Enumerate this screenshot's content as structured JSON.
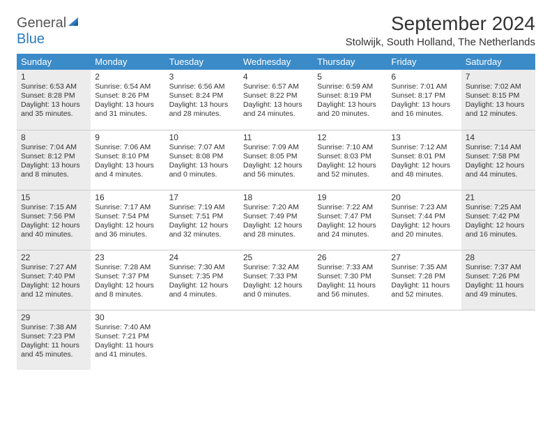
{
  "brand": {
    "part1": "General",
    "part2": "Blue"
  },
  "title": "September 2024",
  "location": "Stolwijk, South Holland, The Netherlands",
  "colors": {
    "header_bg": "#3b8bc9",
    "header_text": "#ffffff",
    "shaded_bg": "#ececec",
    "border": "#c9c9c9",
    "text": "#333333",
    "brand_gray": "#555555",
    "brand_blue": "#2b7bbf"
  },
  "weekdays": [
    "Sunday",
    "Monday",
    "Tuesday",
    "Wednesday",
    "Thursday",
    "Friday",
    "Saturday"
  ],
  "weeks": [
    [
      {
        "day": "1",
        "sunrise": "Sunrise: 6:53 AM",
        "sunset": "Sunset: 8:28 PM",
        "daylight": "Daylight: 13 hours and 35 minutes.",
        "shaded": true
      },
      {
        "day": "2",
        "sunrise": "Sunrise: 6:54 AM",
        "sunset": "Sunset: 8:26 PM",
        "daylight": "Daylight: 13 hours and 31 minutes.",
        "shaded": false
      },
      {
        "day": "3",
        "sunrise": "Sunrise: 6:56 AM",
        "sunset": "Sunset: 8:24 PM",
        "daylight": "Daylight: 13 hours and 28 minutes.",
        "shaded": false
      },
      {
        "day": "4",
        "sunrise": "Sunrise: 6:57 AM",
        "sunset": "Sunset: 8:22 PM",
        "daylight": "Daylight: 13 hours and 24 minutes.",
        "shaded": false
      },
      {
        "day": "5",
        "sunrise": "Sunrise: 6:59 AM",
        "sunset": "Sunset: 8:19 PM",
        "daylight": "Daylight: 13 hours and 20 minutes.",
        "shaded": false
      },
      {
        "day": "6",
        "sunrise": "Sunrise: 7:01 AM",
        "sunset": "Sunset: 8:17 PM",
        "daylight": "Daylight: 13 hours and 16 minutes.",
        "shaded": false
      },
      {
        "day": "7",
        "sunrise": "Sunrise: 7:02 AM",
        "sunset": "Sunset: 8:15 PM",
        "daylight": "Daylight: 13 hours and 12 minutes.",
        "shaded": true
      }
    ],
    [
      {
        "day": "8",
        "sunrise": "Sunrise: 7:04 AM",
        "sunset": "Sunset: 8:12 PM",
        "daylight": "Daylight: 13 hours and 8 minutes.",
        "shaded": true
      },
      {
        "day": "9",
        "sunrise": "Sunrise: 7:06 AM",
        "sunset": "Sunset: 8:10 PM",
        "daylight": "Daylight: 13 hours and 4 minutes.",
        "shaded": false
      },
      {
        "day": "10",
        "sunrise": "Sunrise: 7:07 AM",
        "sunset": "Sunset: 8:08 PM",
        "daylight": "Daylight: 13 hours and 0 minutes.",
        "shaded": false
      },
      {
        "day": "11",
        "sunrise": "Sunrise: 7:09 AM",
        "sunset": "Sunset: 8:05 PM",
        "daylight": "Daylight: 12 hours and 56 minutes.",
        "shaded": false
      },
      {
        "day": "12",
        "sunrise": "Sunrise: 7:10 AM",
        "sunset": "Sunset: 8:03 PM",
        "daylight": "Daylight: 12 hours and 52 minutes.",
        "shaded": false
      },
      {
        "day": "13",
        "sunrise": "Sunrise: 7:12 AM",
        "sunset": "Sunset: 8:01 PM",
        "daylight": "Daylight: 12 hours and 48 minutes.",
        "shaded": false
      },
      {
        "day": "14",
        "sunrise": "Sunrise: 7:14 AM",
        "sunset": "Sunset: 7:58 PM",
        "daylight": "Daylight: 12 hours and 44 minutes.",
        "shaded": true
      }
    ],
    [
      {
        "day": "15",
        "sunrise": "Sunrise: 7:15 AM",
        "sunset": "Sunset: 7:56 PM",
        "daylight": "Daylight: 12 hours and 40 minutes.",
        "shaded": true
      },
      {
        "day": "16",
        "sunrise": "Sunrise: 7:17 AM",
        "sunset": "Sunset: 7:54 PM",
        "daylight": "Daylight: 12 hours and 36 minutes.",
        "shaded": false
      },
      {
        "day": "17",
        "sunrise": "Sunrise: 7:19 AM",
        "sunset": "Sunset: 7:51 PM",
        "daylight": "Daylight: 12 hours and 32 minutes.",
        "shaded": false
      },
      {
        "day": "18",
        "sunrise": "Sunrise: 7:20 AM",
        "sunset": "Sunset: 7:49 PM",
        "daylight": "Daylight: 12 hours and 28 minutes.",
        "shaded": false
      },
      {
        "day": "19",
        "sunrise": "Sunrise: 7:22 AM",
        "sunset": "Sunset: 7:47 PM",
        "daylight": "Daylight: 12 hours and 24 minutes.",
        "shaded": false
      },
      {
        "day": "20",
        "sunrise": "Sunrise: 7:23 AM",
        "sunset": "Sunset: 7:44 PM",
        "daylight": "Daylight: 12 hours and 20 minutes.",
        "shaded": false
      },
      {
        "day": "21",
        "sunrise": "Sunrise: 7:25 AM",
        "sunset": "Sunset: 7:42 PM",
        "daylight": "Daylight: 12 hours and 16 minutes.",
        "shaded": true
      }
    ],
    [
      {
        "day": "22",
        "sunrise": "Sunrise: 7:27 AM",
        "sunset": "Sunset: 7:40 PM",
        "daylight": "Daylight: 12 hours and 12 minutes.",
        "shaded": true
      },
      {
        "day": "23",
        "sunrise": "Sunrise: 7:28 AM",
        "sunset": "Sunset: 7:37 PM",
        "daylight": "Daylight: 12 hours and 8 minutes.",
        "shaded": false
      },
      {
        "day": "24",
        "sunrise": "Sunrise: 7:30 AM",
        "sunset": "Sunset: 7:35 PM",
        "daylight": "Daylight: 12 hours and 4 minutes.",
        "shaded": false
      },
      {
        "day": "25",
        "sunrise": "Sunrise: 7:32 AM",
        "sunset": "Sunset: 7:33 PM",
        "daylight": "Daylight: 12 hours and 0 minutes.",
        "shaded": false
      },
      {
        "day": "26",
        "sunrise": "Sunrise: 7:33 AM",
        "sunset": "Sunset: 7:30 PM",
        "daylight": "Daylight: 11 hours and 56 minutes.",
        "shaded": false
      },
      {
        "day": "27",
        "sunrise": "Sunrise: 7:35 AM",
        "sunset": "Sunset: 7:28 PM",
        "daylight": "Daylight: 11 hours and 52 minutes.",
        "shaded": false
      },
      {
        "day": "28",
        "sunrise": "Sunrise: 7:37 AM",
        "sunset": "Sunset: 7:26 PM",
        "daylight": "Daylight: 11 hours and 49 minutes.",
        "shaded": true
      }
    ],
    [
      {
        "day": "29",
        "sunrise": "Sunrise: 7:38 AM",
        "sunset": "Sunset: 7:23 PM",
        "daylight": "Daylight: 11 hours and 45 minutes.",
        "shaded": true
      },
      {
        "day": "30",
        "sunrise": "Sunrise: 7:40 AM",
        "sunset": "Sunset: 7:21 PM",
        "daylight": "Daylight: 11 hours and 41 minutes.",
        "shaded": false
      },
      null,
      null,
      null,
      null,
      null
    ]
  ]
}
